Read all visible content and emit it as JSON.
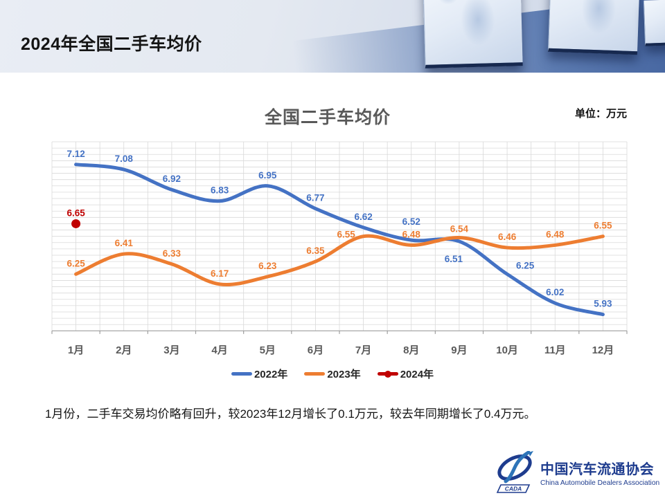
{
  "header": {
    "title": "2024年全国二手车均价"
  },
  "chart": {
    "title": "全国二手车均价",
    "unit_label": "单位：万元"
  },
  "chart_data": {
    "type": "line",
    "title": "全国二手车均价",
    "unit": "万元",
    "categories": [
      "1月",
      "2月",
      "3月",
      "4月",
      "5月",
      "6月",
      "7月",
      "8月",
      "9月",
      "10月",
      "11月",
      "12月"
    ],
    "series": [
      {
        "name": "2022年",
        "color": "#4472C4",
        "style": "smooth-line",
        "values": [
          7.12,
          7.08,
          6.92,
          6.83,
          6.95,
          6.77,
          6.62,
          6.52,
          6.51,
          6.25,
          6.02,
          5.93
        ]
      },
      {
        "name": "2023年",
        "color": "#ED7D31",
        "style": "smooth-line",
        "values": [
          6.25,
          6.41,
          6.33,
          6.17,
          6.23,
          6.35,
          6.55,
          6.48,
          6.54,
          6.46,
          6.48,
          6.55
        ]
      },
      {
        "name": "2024年",
        "color": "#C00000",
        "style": "point",
        "values": [
          6.65,
          null,
          null,
          null,
          null,
          null,
          null,
          null,
          null,
          null,
          null,
          null
        ]
      }
    ],
    "ylim": [
      5.8,
      7.3
    ],
    "y_minor_step": 0.05,
    "grid": true,
    "data_labels": true,
    "legend_position": "bottom",
    "label_offsets": [
      {
        "7": [
          0,
          -22
        ],
        "8": [
          -8,
          30
        ],
        "9": [
          26,
          -8
        ]
      },
      {
        "6": [
          -25,
          2
        ],
        "8": [
          0,
          -8
        ]
      },
      {}
    ]
  },
  "summary": "1月份，二手车交易均价略有回升，较2023年12月增长了0.1万元，较去年同期增长了0.4万元。",
  "footer": {
    "org_cn": "中国汽车流通协会",
    "org_en": "China Automobile Dealers Association",
    "logo_acronym": "CADA"
  }
}
